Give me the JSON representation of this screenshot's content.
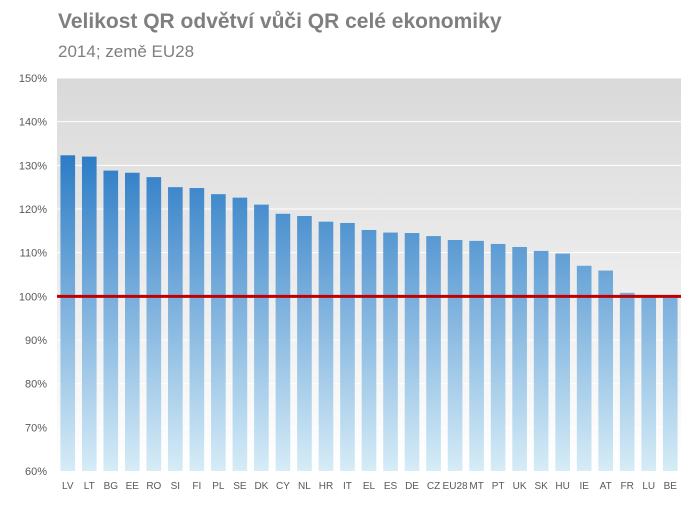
{
  "chart_data": {
    "type": "bar",
    "title": "Velikost QR odvětví vůči QR celé ekonomiky",
    "subtitle": "2014; země EU28",
    "xlabel": "",
    "ylabel": "",
    "ylim": [
      60,
      150
    ],
    "yticks": [
      60,
      70,
      80,
      90,
      100,
      110,
      120,
      130,
      140,
      150
    ],
    "ytick_labels": [
      "60%",
      "70%",
      "80%",
      "90%",
      "100%",
      "110%",
      "120%",
      "130%",
      "140%",
      "150%"
    ],
    "categories": [
      "LV",
      "LT",
      "BG",
      "EE",
      "RO",
      "SI",
      "FI",
      "PL",
      "SE",
      "DK",
      "CY",
      "NL",
      "HR",
      "IT",
      "EL",
      "ES",
      "DE",
      "CZ",
      "EU28",
      "MT",
      "PT",
      "UK",
      "SK",
      "HU",
      "IE",
      "AT",
      "FR",
      "LU",
      "BE"
    ],
    "values": [
      132.3,
      132.0,
      128.8,
      128.3,
      127.3,
      125.0,
      124.8,
      123.4,
      122.6,
      121.0,
      118.9,
      118.4,
      117.1,
      116.8,
      115.2,
      114.6,
      114.5,
      113.8,
      112.9,
      112.7,
      112.0,
      111.3,
      110.4,
      109.8,
      107.0,
      105.9,
      100.8,
      100.2,
      100.0
    ],
    "reference_line": 100,
    "grid": true,
    "legend": "none",
    "colors": {
      "bar_top": "#1f73c2",
      "bar_bottom": "#d6ecf7",
      "reference_line": "#c00000",
      "plot_bg_top": "#d9d9d9",
      "plot_bg_bottom": "#ffffff"
    }
  }
}
